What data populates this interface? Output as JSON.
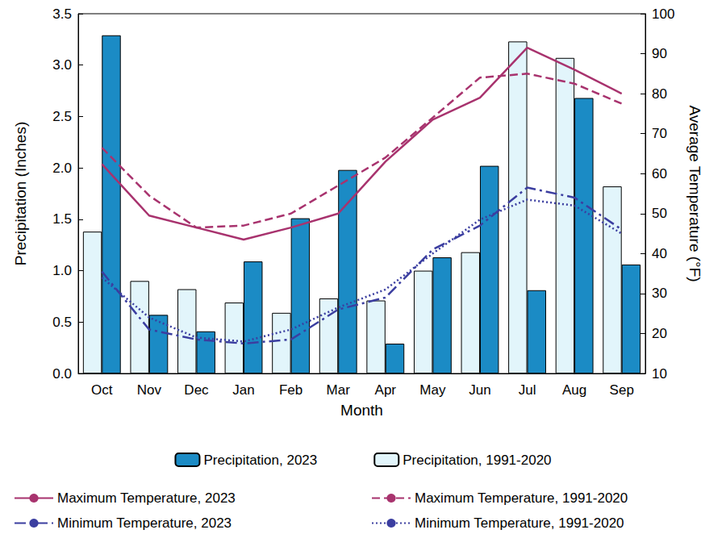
{
  "chart_data": {
    "type": "bar",
    "x_label": "Month",
    "y_label": "Precipitation (Inches)",
    "y2_label": "Average Temperature (°F)",
    "categories": [
      "Oct",
      "Nov",
      "Dec",
      "Jan",
      "Feb",
      "Mar",
      "Apr",
      "May",
      "Jun",
      "Jul",
      "Aug",
      "Sep"
    ],
    "ylim": [
      0,
      3.5
    ],
    "yticks": [
      {
        "value": 0,
        "label": "0.0"
      },
      0.5,
      {
        "value": 1,
        "label": "1.0"
      },
      1.5,
      {
        "value": 2,
        "label": "2.0"
      },
      2.5,
      {
        "value": 3,
        "label": "3.0"
      },
      3.5
    ],
    "y2lim": [
      10,
      100
    ],
    "y2ticks": [
      10,
      20,
      30,
      40,
      50,
      60,
      70,
      80,
      90,
      100
    ],
    "grid": false,
    "legend": "bottom",
    "series": [
      {
        "name": "Precipitation, 2023",
        "type": "bar",
        "color": "#1b8bc5",
        "values": [
          3.29,
          0.57,
          0.41,
          1.09,
          1.51,
          1.98,
          0.29,
          1.13,
          2.02,
          0.81,
          2.68,
          1.06
        ]
      },
      {
        "name": "Precipitation, 1991-2020",
        "type": "bar",
        "color": "#e2f5fb",
        "values": [
          1.38,
          0.9,
          0.82,
          0.69,
          0.59,
          0.73,
          0.71,
          1.0,
          1.18,
          3.23,
          3.07,
          1.82
        ]
      },
      {
        "name": "Maximum Temperature, 2023",
        "type": "line",
        "axis": "y2",
        "color": "#a8336e",
        "line_style": "solid",
        "values": [
          62.4,
          49.5,
          46.5,
          43.5,
          46.5,
          50,
          63,
          73.5,
          79,
          91.5,
          86,
          80
        ]
      },
      {
        "name": "Maximum Temperature, 1991-2020",
        "type": "line",
        "axis": "y2",
        "color": "#a8336e",
        "line_style": "dashed",
        "values": [
          66.5,
          54.5,
          46.5,
          47,
          50,
          57,
          64,
          74,
          84,
          85,
          82.5,
          77.5
        ]
      },
      {
        "name": "Minimum Temperature, 2023",
        "type": "line",
        "axis": "y2",
        "color": "#3b3ea0",
        "line_style": "dashdot",
        "values": [
          35.5,
          21,
          18.5,
          17.5,
          18.5,
          26,
          29,
          41,
          47,
          56.5,
          54,
          46
        ]
      },
      {
        "name": "Minimum Temperature, 1991-2020",
        "type": "line",
        "axis": "y2",
        "color": "#3b3ea0",
        "line_style": "dotted",
        "values": [
          34,
          24,
          19,
          18,
          21,
          26.5,
          31,
          40,
          48.5,
          53.5,
          52,
          45
        ]
      }
    ]
  }
}
